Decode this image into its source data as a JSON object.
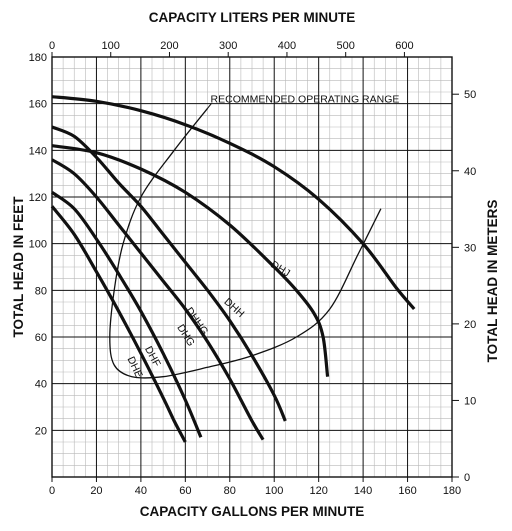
{
  "chart_data": {
    "type": "line",
    "title": "",
    "xlabel": "CAPACITY GALLONS PER MINUTE",
    "ylabel": "TOTAL HEAD IN FEET",
    "x2label": "CAPACITY LITERS PER MINUTE",
    "y2label": "TOTAL HEAD IN METERS",
    "xlim": [
      0,
      180
    ],
    "ylim": [
      0,
      180
    ],
    "x2lim": [
      0,
      681
    ],
    "y2lim": [
      0,
      54.86
    ],
    "xticks": [
      0,
      20,
      40,
      60,
      80,
      100,
      120,
      140,
      160,
      180
    ],
    "yticks": [
      20,
      40,
      60,
      80,
      100,
      120,
      140,
      160,
      180
    ],
    "x2ticks": [
      0,
      100,
      200,
      300,
      400,
      500,
      600
    ],
    "y2ticks": [
      0,
      10,
      20,
      30,
      40,
      50
    ],
    "grid": true,
    "minor_grid": true,
    "series": [
      {
        "name": "DHE",
        "label_at": [
          36,
          93
        ],
        "label_rotation": 65,
        "x": [
          0,
          10,
          20,
          30,
          40,
          50,
          55,
          60
        ],
        "y": [
          116,
          104,
          88,
          71,
          53,
          34,
          24,
          15
        ]
      },
      {
        "name": "DHF",
        "label_at": [
          44,
          102
        ],
        "label_rotation": 62,
        "x": [
          0,
          10,
          20,
          30,
          40,
          50,
          60,
          67
        ],
        "y": [
          122,
          115,
          102,
          87,
          71,
          53,
          33,
          17
        ]
      },
      {
        "name": "DHG",
        "label_at": [
          59,
          120
        ],
        "label_rotation": 58,
        "x": [
          0,
          10,
          20,
          30,
          40,
          50,
          60,
          70,
          80,
          90,
          95
        ],
        "y": [
          136,
          130,
          120,
          108,
          96,
          84,
          72,
          58,
          42,
          24,
          16
        ]
      },
      {
        "name": "DHHG",
        "label_at": [
          64,
          132
        ],
        "label_rotation": 55,
        "x": [
          0,
          10,
          20,
          30,
          40,
          50,
          60,
          70,
          80,
          90,
          100,
          105
        ],
        "y": [
          150,
          146,
          137,
          126,
          116,
          104,
          92,
          80,
          67,
          52,
          35,
          24
        ]
      },
      {
        "name": "DHH",
        "label_at": [
          81,
          143
        ],
        "label_rotation": 42,
        "x": [
          0,
          20,
          40,
          60,
          80,
          100,
          110,
          118,
          122,
          124
        ],
        "y": [
          142,
          139,
          132,
          122,
          108,
          90,
          80,
          70,
          60,
          43
        ]
      },
      {
        "name": "DHJ",
        "label_at": [
          102,
          176
        ],
        "label_rotation": 32,
        "x": [
          0,
          20,
          40,
          60,
          80,
          100,
          120,
          140,
          155,
          163
        ],
        "y": [
          163,
          161,
          157,
          151,
          143,
          133,
          119,
          100,
          81,
          72
        ]
      }
    ],
    "operating_range": {
      "label": "RECOMMENDED OPERATING RANGE",
      "outline": [
        {
          "x": 70,
          "y": 158
        },
        {
          "x": 55,
          "y": 140
        },
        {
          "x": 40,
          "y": 120
        },
        {
          "x": 32,
          "y": 100
        },
        {
          "x": 28,
          "y": 80
        },
        {
          "x": 26,
          "y": 60
        },
        {
          "x": 28,
          "y": 48
        },
        {
          "x": 36,
          "y": 43
        },
        {
          "x": 50,
          "y": 43
        },
        {
          "x": 70,
          "y": 47
        },
        {
          "x": 90,
          "y": 52
        },
        {
          "x": 110,
          "y": 60
        },
        {
          "x": 125,
          "y": 72
        },
        {
          "x": 138,
          "y": 96
        },
        {
          "x": 148,
          "y": 115
        }
      ]
    }
  }
}
